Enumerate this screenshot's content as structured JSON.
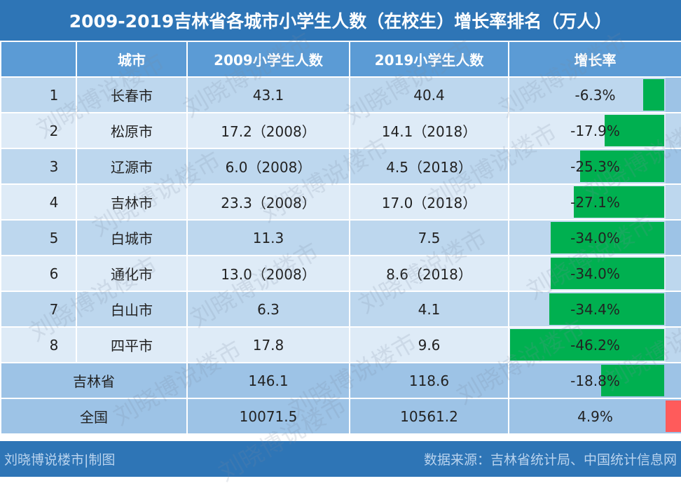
{
  "title": "2009-2019吉林省各城市小学生人数（在校生）增长率排名（万人）",
  "headers": [
    "",
    "城市",
    "2009小学生人数",
    "2019小学生人数",
    "增长率"
  ],
  "rows": [
    {
      "rank": "1",
      "city": "长春市",
      "v2009": "43.1",
      "v2019": "40.4",
      "rate": "-6.3%",
      "rate_value": -6.3
    },
    {
      "rank": "2",
      "city": "松原市",
      "v2009": "17.2（2008）",
      "v2019": "14.1（2018）",
      "rate": "-17.9%",
      "rate_value": -17.9
    },
    {
      "rank": "3",
      "city": "辽源市",
      "v2009": "6.0（2008）",
      "v2019": "4.5（2018）",
      "rate": "-25.3%",
      "rate_value": -25.3
    },
    {
      "rank": "4",
      "city": "吉林市",
      "v2009": "23.3（2008）",
      "v2019": "17.0（2018）",
      "rate": "-27.1%",
      "rate_value": -27.1
    },
    {
      "rank": "5",
      "city": "白城市",
      "v2009": "11.3",
      "v2019": "7.5",
      "rate": "-34.0%",
      "rate_value": -34.0
    },
    {
      "rank": "6",
      "city": "通化市",
      "v2009": "13.0（2008）",
      "v2019": "8.6（2018）",
      "rate": "-34.0%",
      "rate_value": -34.0
    },
    {
      "rank": "7",
      "city": "白山市",
      "v2009": "6.3",
      "v2019": "4.1",
      "rate": "-34.4%",
      "rate_value": -34.4
    },
    {
      "rank": "8",
      "city": "四平市",
      "v2009": "17.8",
      "v2019": "9.6",
      "rate": "-46.2%",
      "rate_value": -46.2
    }
  ],
  "summary": [
    {
      "name": "吉林省",
      "v2009": "146.1",
      "v2019": "118.6",
      "rate": "-18.8%",
      "rate_value": -18.8
    },
    {
      "name": "全国",
      "v2009": "10071.5",
      "v2019": "10561.2",
      "rate": "4.9%",
      "rate_value": 4.9
    }
  ],
  "footer": {
    "left": "刘晓博说楼市|制图",
    "right": "数据来源：吉林省统计局、中国统计信息网"
  },
  "watermark_text": "刘晓博说楼市",
  "colors": {
    "header": "#2e75b6",
    "negative_bar": "#00b050",
    "positive_bar": "#ff5b5b"
  }
}
